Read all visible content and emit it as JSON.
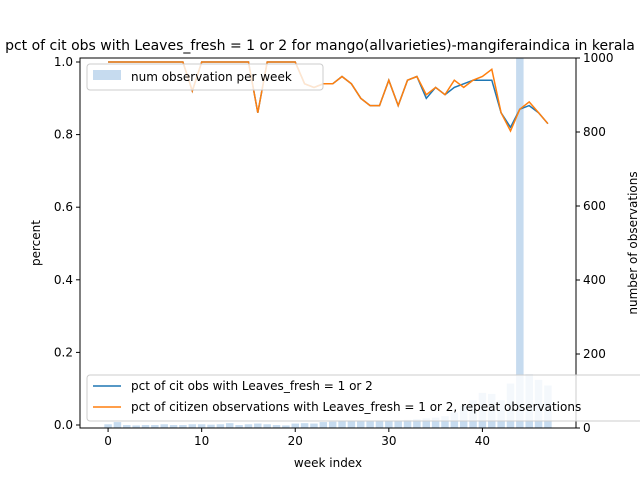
{
  "chart_data": {
    "type": "line",
    "title": "pct of cit obs with Leaves_fresh = 1 or 2 for mango(allvarieties)-mangiferaindica in kerala",
    "xlabel": "week index",
    "ylabel": "percent",
    "y2label": "number of observations",
    "xlim": [
      -3,
      50
    ],
    "ylim": [
      0,
      1.0
    ],
    "y2lim": [
      0,
      1000
    ],
    "xticks": [
      0,
      10,
      20,
      30,
      40
    ],
    "yticks": [
      "0.0",
      "0.2",
      "0.4",
      "0.6",
      "0.8",
      "1.0"
    ],
    "y2ticks": [
      "0",
      "200",
      "400",
      "600",
      "800",
      "1000"
    ],
    "legend_top": "top-left",
    "legend_bottom": "bottom-left",
    "bar_series": {
      "name": "num observation per week",
      "color": "#c6dbef",
      "x": [
        0,
        1,
        2,
        3,
        4,
        5,
        6,
        7,
        8,
        9,
        10,
        11,
        12,
        13,
        14,
        15,
        16,
        17,
        18,
        19,
        20,
        21,
        22,
        23,
        24,
        25,
        26,
        27,
        28,
        29,
        30,
        31,
        32,
        33,
        34,
        35,
        36,
        37,
        38,
        39,
        40,
        41,
        42,
        43,
        44,
        45,
        46,
        47
      ],
      "values": [
        10,
        16,
        8,
        7,
        8,
        8,
        10,
        8,
        8,
        10,
        10,
        9,
        10,
        13,
        8,
        10,
        12,
        10,
        8,
        7,
        12,
        13,
        12,
        16,
        17,
        20,
        18,
        20,
        18,
        20,
        18,
        20,
        22,
        24,
        26,
        28,
        32,
        42,
        60,
        75,
        95,
        92,
        75,
        120,
        1000,
        145,
        130,
        115
      ]
    },
    "series": [
      {
        "name": "pct of cit obs with Leaves_fresh = 1 or 2",
        "color": "#1f77b4",
        "x": [
          0,
          1,
          2,
          3,
          4,
          5,
          6,
          7,
          8,
          9,
          10,
          11,
          12,
          13,
          14,
          15,
          16,
          17,
          18,
          19,
          20,
          21,
          22,
          23,
          24,
          25,
          26,
          27,
          28,
          29,
          30,
          31,
          32,
          33,
          34,
          35,
          36,
          37,
          38,
          39,
          40,
          41,
          42,
          43,
          44,
          45,
          46,
          47
        ],
        "values": [
          1.0,
          1.0,
          1.0,
          1.0,
          1.0,
          1.0,
          1.0,
          1.0,
          1.0,
          0.92,
          1.0,
          1.0,
          1.0,
          1.0,
          1.0,
          1.0,
          0.86,
          1.0,
          1.0,
          1.0,
          1.0,
          0.94,
          0.93,
          0.94,
          0.94,
          0.96,
          0.94,
          0.9,
          0.88,
          0.88,
          0.95,
          0.88,
          0.95,
          0.96,
          0.9,
          0.93,
          0.91,
          0.93,
          0.94,
          0.95,
          0.95,
          0.95,
          0.86,
          0.82,
          0.87,
          0.88,
          0.86,
          0.83
        ]
      },
      {
        "name": "pct of citizen observations with Leaves_fresh = 1 or 2, repeat observations",
        "color": "#ff7f0e",
        "x": [
          0,
          1,
          2,
          3,
          4,
          5,
          6,
          7,
          8,
          9,
          10,
          11,
          12,
          13,
          14,
          15,
          16,
          17,
          18,
          19,
          20,
          21,
          22,
          23,
          24,
          25,
          26,
          27,
          28,
          29,
          30,
          31,
          32,
          33,
          34,
          35,
          36,
          37,
          38,
          39,
          40,
          41,
          42,
          43,
          44,
          45,
          46,
          47
        ],
        "values": [
          1.0,
          1.0,
          1.0,
          1.0,
          1.0,
          1.0,
          1.0,
          1.0,
          1.0,
          0.92,
          1.0,
          1.0,
          1.0,
          1.0,
          1.0,
          1.0,
          0.86,
          1.0,
          1.0,
          1.0,
          1.0,
          0.94,
          0.93,
          0.94,
          0.94,
          0.96,
          0.94,
          0.9,
          0.88,
          0.88,
          0.95,
          0.88,
          0.95,
          0.96,
          0.91,
          0.93,
          0.91,
          0.95,
          0.93,
          0.95,
          0.96,
          0.98,
          0.86,
          0.81,
          0.87,
          0.89,
          0.86,
          0.83
        ]
      }
    ]
  }
}
